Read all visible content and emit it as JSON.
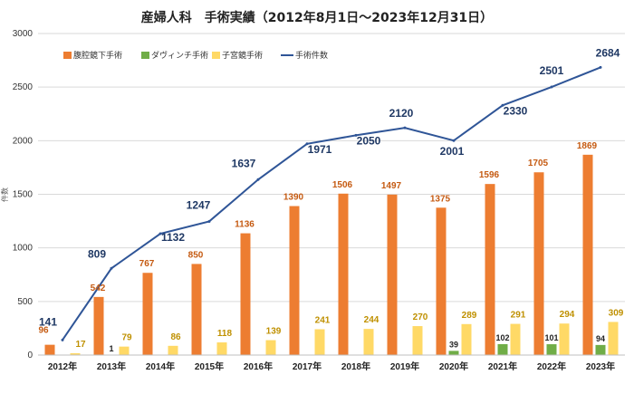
{
  "chart_data": {
    "type": "bar",
    "title": "産婦人科　手術実績（2012年8月1日～2023年12月31日）",
    "ylabel": "件数",
    "xlabel": "",
    "ylim": [
      0,
      3000
    ],
    "yticks": [
      0,
      500,
      1000,
      1500,
      2000,
      2500,
      3000
    ],
    "grid": true,
    "legend_position": "top-left",
    "categories": [
      "2012年",
      "2013年",
      "2014年",
      "2015年",
      "2016年",
      "2017年",
      "2018年",
      "2019年",
      "2020年",
      "2021年",
      "2022年",
      "2023年"
    ],
    "series": [
      {
        "name": "腹腔鏡下手術",
        "type": "bar",
        "color": "#ed7d31",
        "values": [
          96,
          542,
          767,
          850,
          1136,
          1390,
          1506,
          1497,
          1375,
          1596,
          1705,
          1869
        ]
      },
      {
        "name": "ダヴィンチ手術",
        "type": "bar",
        "color": "#70ad47",
        "values": [
          0,
          1,
          0,
          0,
          0,
          0,
          0,
          0,
          39,
          102,
          101,
          94
        ],
        "labels": [
          "",
          "1",
          "",
          "",
          "",
          "",
          "",
          "",
          "39",
          "102",
          "101",
          "94"
        ]
      },
      {
        "name": "子宮鏡手術",
        "type": "bar",
        "color": "#ffd966",
        "values": [
          17,
          79,
          86,
          118,
          139,
          241,
          244,
          270,
          289,
          291,
          294,
          309
        ]
      },
      {
        "name": "手術件数",
        "type": "line",
        "color": "#2f5597",
        "values": [
          141,
          809,
          1132,
          1247,
          1637,
          1971,
          2050,
          2120,
          2001,
          2330,
          2501,
          2684
        ]
      }
    ]
  }
}
